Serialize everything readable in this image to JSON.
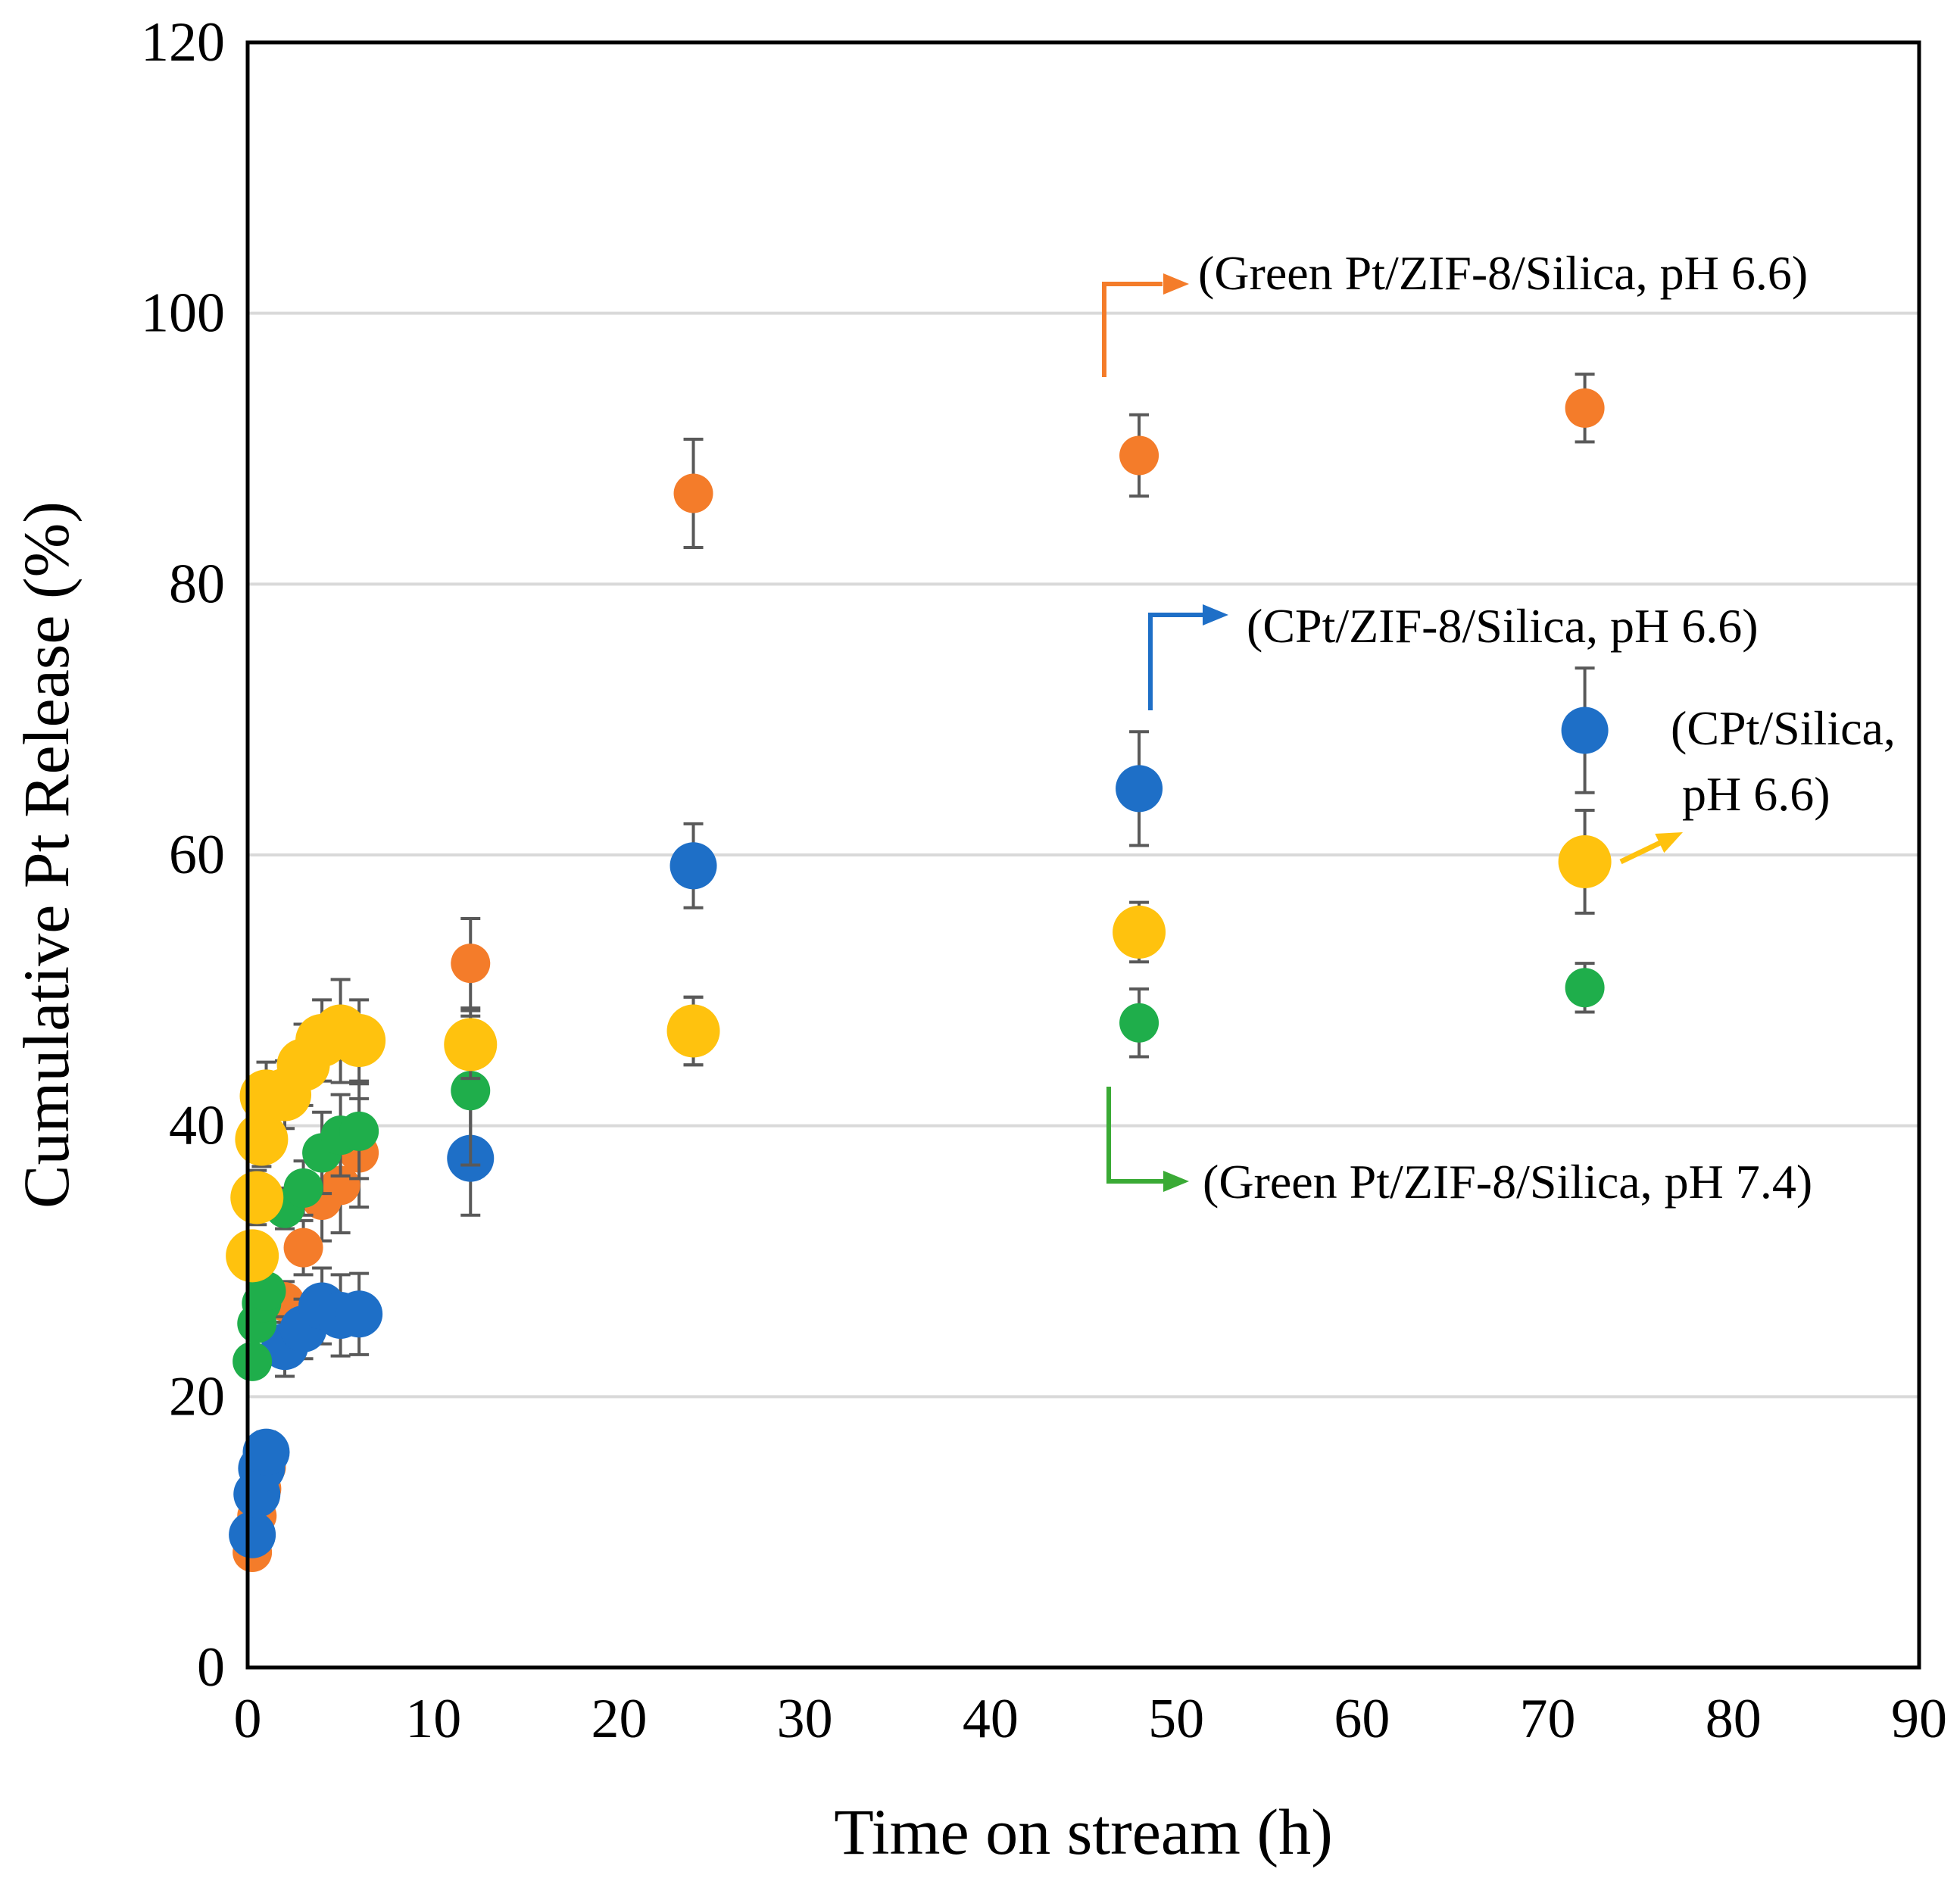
{
  "chart_data": {
    "type": "scatter",
    "title": "",
    "xlabel": "Time on stream (h)",
    "ylabel": "Cumulative Pt Release (%)",
    "xlim": [
      0,
      90
    ],
    "ylim": [
      0,
      120
    ],
    "xticks": [
      0,
      10,
      20,
      30,
      40,
      50,
      60,
      70,
      80,
      90
    ],
    "yticks": [
      0,
      20,
      40,
      60,
      80,
      100,
      120
    ],
    "grid": "horizontal",
    "legend": "none",
    "series": [
      {
        "name": "Green Pt/ZIF-8/Silica, pH 6.6",
        "color": "#F47C2A",
        "marker_size": "small",
        "x": [
          0.25,
          0.5,
          0.75,
          1,
          2,
          3,
          4,
          5,
          6,
          12,
          24,
          48,
          72
        ],
        "y": [
          8.5,
          11.2,
          13.2,
          14.8,
          27,
          31,
          34.5,
          35.6,
          38,
          52,
          86.7,
          89.5,
          93
        ],
        "err": [
          0.5,
          0.5,
          0.6,
          0.6,
          1.5,
          2,
          3,
          3.5,
          4,
          3.3,
          4,
          3,
          2.5
        ]
      },
      {
        "name": "CPt/ZIF-8/Silica, pH 6.6",
        "color": "#1E6FC7",
        "marker_size": "medium",
        "x": [
          0.25,
          0.5,
          0.75,
          1,
          2,
          3,
          4,
          5,
          6,
          12,
          24,
          48,
          72
        ],
        "y": [
          9.8,
          12.8,
          14.7,
          15.9,
          23.7,
          25,
          26.7,
          26,
          26.1,
          37.6,
          59.2,
          64.9,
          69.2
        ],
        "err": [
          0.6,
          0.8,
          1,
          1.5,
          2.2,
          2.2,
          2.8,
          3,
          3,
          4.2,
          3.1,
          4.2,
          4.6
        ]
      },
      {
        "name": "Green Pt/ZIF-8/Silica, pH 7.4",
        "color": "#1FAE4B",
        "marker_size": "small",
        "x": [
          0.25,
          0.5,
          0.75,
          1,
          2,
          3,
          4,
          5,
          6,
          12,
          24,
          48,
          72
        ],
        "y": [
          22.6,
          25.4,
          26.9,
          27.8,
          33.9,
          35.4,
          38,
          39.3,
          39.6,
          42.6,
          47,
          47.6,
          50.2
        ],
        "err": [
          1,
          1,
          1,
          1,
          1.5,
          2,
          3,
          3,
          3.5,
          5.5,
          2.5,
          2.5,
          1.8
        ]
      },
      {
        "name": "CPt/Silica, pH 6.6",
        "color": "#FFC20E",
        "marker_size": "large",
        "x": [
          0.25,
          0.5,
          0.75,
          1,
          2,
          3,
          4,
          5,
          6,
          12,
          24,
          48,
          72
        ],
        "y": [
          30.4,
          34.7,
          39,
          42.2,
          42.3,
          44.5,
          46.3,
          47,
          46.3,
          46,
          47,
          54.3,
          59.5
        ],
        "err": [
          1.5,
          2,
          2,
          2.5,
          2.5,
          3,
          3,
          3.8,
          3,
          2.5,
          2.5,
          2.2,
          3.8
        ]
      }
    ],
    "annotations": [
      {
        "text": "(Green Pt/ZIF-8/Silica, pH 6.6)",
        "color": "#F47C2A",
        "arrow": "elbow-up-right"
      },
      {
        "text": "(CPt/ZIF-8/Silica, pH 6.6)",
        "color": "#1E6FC7",
        "arrow": "elbow-up-right"
      },
      {
        "text": "(CPt/Silica,",
        "text2": "pH 6.6)",
        "color": "#FFC20E",
        "arrow": "diagonal"
      },
      {
        "text": "(Green Pt/ZIF-8/Silica, pH 7.4)",
        "color": "#3AAA35",
        "arrow": "elbow-down-right"
      }
    ]
  }
}
